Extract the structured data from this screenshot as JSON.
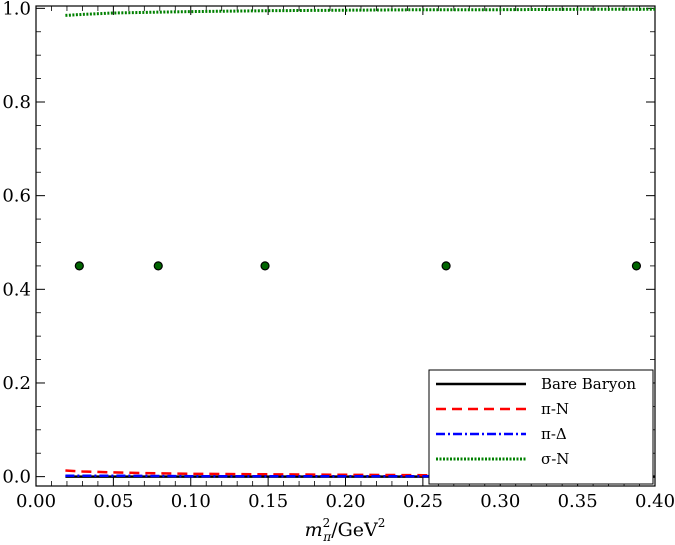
{
  "chart_data": {
    "type": "line",
    "title": "",
    "xlabel": {
      "base": "m",
      "sub": "π",
      "sup": "2",
      "rest": "/GeV",
      "rest_sup": "2"
    },
    "ylabel": "",
    "xlim": [
      0.0,
      0.4
    ],
    "ylim": [
      -0.02,
      1.005
    ],
    "x_ticks": [
      "0.00",
      "0.05",
      "0.10",
      "0.15",
      "0.20",
      "0.25",
      "0.30",
      "0.35",
      "0.40"
    ],
    "y_ticks": [
      "0.0",
      "0.2",
      "0.4",
      "0.6",
      "0.8",
      "1.0"
    ],
    "x_tick_values": [
      0.0,
      0.05,
      0.1,
      0.15,
      0.2,
      0.25,
      0.3,
      0.35,
      0.4
    ],
    "y_tick_values": [
      0.0,
      0.2,
      0.4,
      0.6,
      0.8,
      1.0
    ],
    "grid": false,
    "legend_position": "bottom-right",
    "series": [
      {
        "name": "Bare Baryon",
        "color": "#000000",
        "style": "solid",
        "x": [
          0.019,
          0.05,
          0.1,
          0.15,
          0.2,
          0.25,
          0.3,
          0.35,
          0.4
        ],
        "y": [
          0.0,
          0.0,
          0.0,
          0.0,
          0.0,
          0.0,
          0.0,
          0.0,
          0.0
        ]
      },
      {
        "name": "π-N",
        "color": "#ff0000",
        "style": "dashed",
        "x": [
          0.019,
          0.03,
          0.05,
          0.08,
          0.1,
          0.15,
          0.2,
          0.25,
          0.3,
          0.35,
          0.4
        ],
        "y": [
          0.013,
          0.011,
          0.009,
          0.007,
          0.006,
          0.005,
          0.004,
          0.003,
          0.002,
          0.002,
          0.001
        ]
      },
      {
        "name": "π-Δ",
        "color": "#0000ff",
        "style": "dashdot",
        "x": [
          0.019,
          0.05,
          0.1,
          0.15,
          0.2,
          0.25,
          0.3,
          0.35,
          0.4
        ],
        "y": [
          0.002,
          0.002,
          0.001,
          0.001,
          0.001,
          0.001,
          0.001,
          0.0,
          0.0
        ]
      },
      {
        "name": "σ-N",
        "color": "#008000",
        "style": "dotted",
        "x": [
          0.019,
          0.03,
          0.05,
          0.08,
          0.1,
          0.15,
          0.2,
          0.25,
          0.3,
          0.35,
          0.4
        ],
        "y": [
          0.985,
          0.987,
          0.99,
          0.992,
          0.993,
          0.995,
          0.996,
          0.997,
          0.997,
          0.998,
          0.998
        ]
      }
    ],
    "points": {
      "color": "#006400",
      "edge": "#000000",
      "x": [
        0.028,
        0.079,
        0.148,
        0.265,
        0.388
      ],
      "y": [
        0.45,
        0.45,
        0.45,
        0.45,
        0.45
      ]
    }
  }
}
